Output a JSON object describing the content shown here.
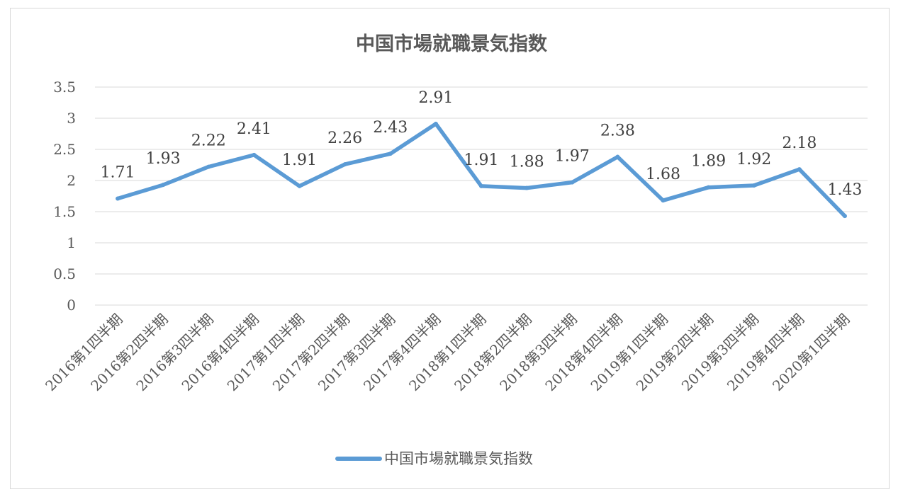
{
  "chart_data": {
    "type": "line",
    "title": "中国市場就職景気指数",
    "categories": [
      "2016第1四半期",
      "2016第2四半期",
      "2016第3四半期",
      "2016第4四半期",
      "2017第1四半期",
      "2017第2四半期",
      "2017第3四半期",
      "2017第4四半期",
      "2018第1四半期",
      "2018第2四半期",
      "2018第3四半期",
      "2018第4四半期",
      "2019第1四半期",
      "2019第2四半期",
      "2019第3四半期",
      "2019第4四半期",
      "2020第1四半期"
    ],
    "series": [
      {
        "name": "中国市場就職景気指数",
        "values": [
          1.71,
          1.93,
          2.22,
          2.41,
          1.91,
          2.26,
          2.43,
          2.91,
          1.91,
          1.88,
          1.97,
          2.38,
          1.68,
          1.89,
          1.92,
          2.18,
          1.43
        ],
        "labels": [
          "1.71",
          "1.93",
          "2.22",
          "2.41",
          "1.91",
          "2.26",
          "2.43",
          "2.91",
          "1.91",
          "1.88",
          "1.97",
          "2.38",
          "1.68",
          "1.89",
          "1.92",
          "2.18",
          "1.43"
        ],
        "color": "#5b9bd5"
      }
    ],
    "yticks": [
      "0",
      "0.5",
      "1",
      "1.5",
      "2",
      "2.5",
      "3",
      "3.5"
    ],
    "ylim": [
      0,
      3.5
    ],
    "grid": true,
    "legend": "bottom",
    "gridColor": "#d9d9d9"
  }
}
